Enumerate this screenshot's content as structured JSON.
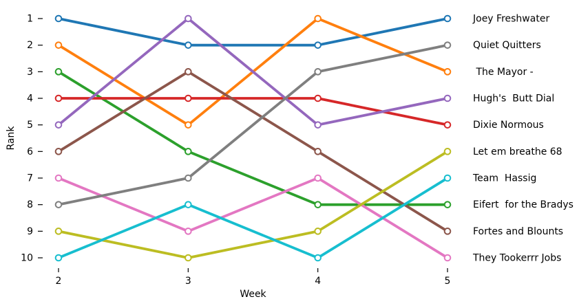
{
  "chart_data": {
    "type": "line",
    "subtype": "bump-rank-chart",
    "title": "",
    "xlabel": "Week",
    "ylabel": "Rank",
    "x": [
      2,
      3,
      4,
      5
    ],
    "y_ticks": [
      1,
      2,
      3,
      4,
      5,
      6,
      7,
      8,
      9,
      10
    ],
    "y_inverted": true,
    "ylim": [
      1,
      10
    ],
    "grid": false,
    "legend_position": "right-at-final-rank",
    "marker": "open-circle-white-fill",
    "series": [
      {
        "name": "Joey Freshwater",
        "color": "#1f77b4",
        "values": [
          1,
          2,
          2,
          1
        ]
      },
      {
        "name": "Quiet Quitters",
        "color": "#7f7f7f",
        "values": [
          8,
          7,
          3,
          2
        ]
      },
      {
        "name": " The Mayor -",
        "color": "#ff7f0e",
        "values": [
          2,
          5,
          1,
          3
        ]
      },
      {
        "name": "Hugh's  Butt Dial",
        "color": "#9467bd",
        "values": [
          5,
          1,
          5,
          4
        ]
      },
      {
        "name": "Dixie Normous",
        "color": "#d62728",
        "values": [
          4,
          4,
          4,
          5
        ]
      },
      {
        "name": "Let em breathe 68",
        "color": "#bcbd22",
        "values": [
          9,
          10,
          9,
          6
        ]
      },
      {
        "name": "Team  Hassig",
        "color": "#17becf",
        "values": [
          10,
          8,
          10,
          7
        ]
      },
      {
        "name": "Eifert  for the Bradys",
        "color": "#2ca02c",
        "values": [
          3,
          6,
          8,
          8
        ]
      },
      {
        "name": "Fortes and Blounts",
        "color": "#8c564b",
        "values": [
          6,
          3,
          6,
          9
        ]
      },
      {
        "name": "They Tookerrr Jobs",
        "color": "#e377c2",
        "values": [
          7,
          9,
          7,
          10
        ]
      }
    ]
  }
}
